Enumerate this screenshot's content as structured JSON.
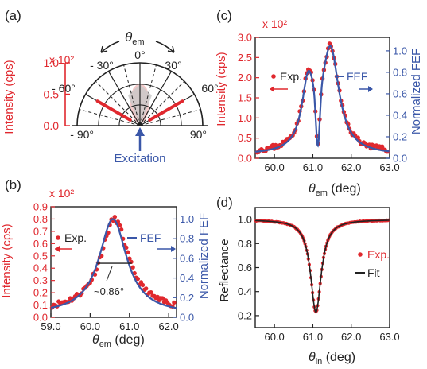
{
  "colors": {
    "red": "#e0282e",
    "blue": "#3a57a8",
    "black": "#222222",
    "polar_fill": "#f3c9c9",
    "polar_gray": "#c8c8c8"
  },
  "chart_data": [
    {
      "panel_label": "(a)",
      "type": "polar",
      "title": "θem",
      "ylabel": "Intensity (cps)",
      "scale_note": "x 10²",
      "yticks": [
        "0.0",
        "0.5",
        "1.0"
      ],
      "ylim": [
        0,
        1.0
      ],
      "angle_ticks": [
        "- 90°",
        "- 60°",
        "- 30°",
        "0°",
        "30°",
        "60°",
        "90°"
      ],
      "annotation": "Excitation",
      "emission_lobe_angles_deg": [
        -60,
        60
      ],
      "emission_lobe_value": 0.78
    },
    {
      "panel_label": "(b)",
      "type": "scatter",
      "xlabel": "θem (deg)",
      "ylabel": "Intensity (cps)",
      "ylabel_right": "Normalized FEF",
      "scale_note": "x 10²",
      "xlim": [
        59.0,
        62.2
      ],
      "ylim": [
        0,
        0.9
      ],
      "ylim_right": [
        0,
        1.125
      ],
      "xticks": [
        "59.0",
        "60.0",
        "61.0",
        "62.0"
      ],
      "yticks": [
        "0.0",
        "0.1",
        "0.2",
        "0.3",
        "0.4",
        "0.5",
        "0.6",
        "0.7",
        "0.8",
        "0.9"
      ],
      "yticks_right": [
        "0.0",
        "0.2",
        "0.4",
        "0.6",
        "0.8",
        "1.0"
      ],
      "legend": [
        "Exp.",
        "FEF"
      ],
      "annotation": "~0.86°",
      "series": [
        {
          "name": "Exp.",
          "kind": "points",
          "peak_x": 60.62,
          "hwhm": 0.43,
          "peak_y": 0.8,
          "baseline_y": 0.05
        },
        {
          "name": "FEF",
          "kind": "line",
          "axis": "right",
          "peak_x": 60.58,
          "hwhm": 0.43,
          "peak_y": 1.0,
          "baseline_y": 0.03
        }
      ]
    },
    {
      "panel_label": "(c)",
      "type": "scatter",
      "xlabel": "θem (deg)",
      "ylabel": "Intensity (cps)",
      "ylabel_right": "Normalized FEF",
      "scale_note": "x 10²",
      "xlim": [
        59.5,
        63.0
      ],
      "ylim": [
        0,
        3.0
      ],
      "ylim_right": [
        0,
        1.125
      ],
      "xticks": [
        "60.0",
        "61.0",
        "62.0",
        "63.0"
      ],
      "yticks": [
        "0.0",
        "0.5",
        "1.0",
        "1.5",
        "2.0",
        "2.5",
        "3.0"
      ],
      "yticks_right": [
        "0.0",
        "0.2",
        "0.4",
        "0.6",
        "0.8",
        "1.0"
      ],
      "legend": [
        "Exp.",
        "FEF"
      ],
      "series": [
        {
          "name": "Exp.",
          "kind": "points",
          "peaks": [
            [
              60.88,
              1.75,
              0.2
            ],
            [
              61.46,
              2.62,
              0.27
            ]
          ],
          "dip_x": 61.13,
          "baseline_y": 0.12
        },
        {
          "name": "FEF",
          "kind": "line",
          "axis": "right",
          "peaks": [
            [
              60.88,
              0.64,
              0.2
            ],
            [
              61.46,
              0.98,
              0.27
            ]
          ],
          "dip_x": 61.13,
          "baseline_y": 0.03
        }
      ]
    },
    {
      "panel_label": "(d)",
      "type": "line",
      "xlabel": "θin (deg)",
      "ylabel": "Reflectance",
      "xlim": [
        59.5,
        63.0
      ],
      "ylim": [
        0.1,
        1.1
      ],
      "xticks": [
        "60.0",
        "61.0",
        "62.0",
        "63.0"
      ],
      "yticks": [
        "0.2",
        "0.4",
        "0.6",
        "0.8",
        "1.0"
      ],
      "legend": [
        "Exp.",
        "Fit"
      ],
      "series": [
        {
          "name": "Exp.",
          "kind": "points",
          "dip_x": 61.08,
          "min_y": 0.23,
          "base_y": 1.0,
          "hwhm": 0.32
        },
        {
          "name": "Fit",
          "kind": "line",
          "dip_x": 61.08,
          "min_y": 0.23,
          "base_y": 1.0,
          "hwhm": 0.32
        }
      ]
    }
  ]
}
